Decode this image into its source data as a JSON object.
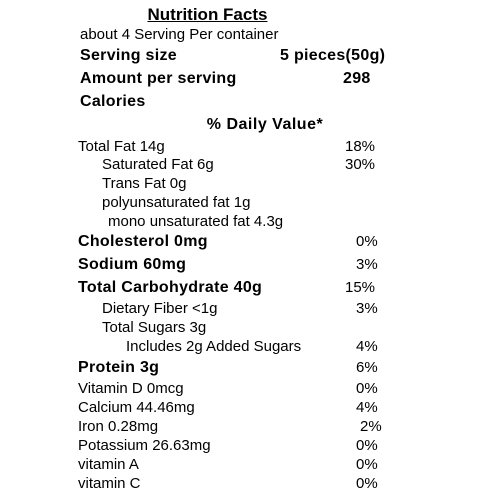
{
  "label": {
    "title": "Nutrition Facts",
    "servings_line": "about 4 Serving Per container",
    "serving_size_label": "Serving size",
    "serving_size_value": "5 pieces(50g)",
    "amount_label": "Amount per serving",
    "amount_value": "298",
    "calories_label": "Calories",
    "daily_value_header": "% Daily Value*"
  },
  "nutrients": [
    {
      "name": "Total Fat 14g",
      "dv": "18%"
    },
    {
      "name": "Saturated Fat 6g",
      "dv": "30%"
    },
    {
      "name": "Trans Fat 0g",
      "dv": ""
    },
    {
      "name": "polyunsaturated fat 1g",
      "dv": ""
    },
    {
      "name": "mono unsaturated fat 4.3g",
      "dv": ""
    },
    {
      "name": "Cholesterol 0mg",
      "dv": "0%"
    },
    {
      "name": "Sodium 60mg",
      "dv": "3%"
    },
    {
      "name": "Total Carbohydrate 40g",
      "dv": "15%"
    },
    {
      "name": "Dietary Fiber <1g",
      "dv": "3%"
    },
    {
      "name": "Total Sugars 3g",
      "dv": ""
    },
    {
      "name": "Includes  2g Added Sugars",
      "dv": "4%"
    },
    {
      "name": "Protein 3g",
      "dv": "6%"
    },
    {
      "name": "Vitamin D 0mcg",
      "dv": "0%"
    },
    {
      "name": "Calcium 44.46mg",
      "dv": "4%"
    },
    {
      "name": "Iron 0.28mg",
      "dv": "2%"
    },
    {
      "name": "Potassium 26.63mg",
      "dv": "0%"
    },
    {
      "name": "vitamin A",
      "dv": "0%"
    },
    {
      "name": "vitamin C",
      "dv": "0%"
    }
  ]
}
